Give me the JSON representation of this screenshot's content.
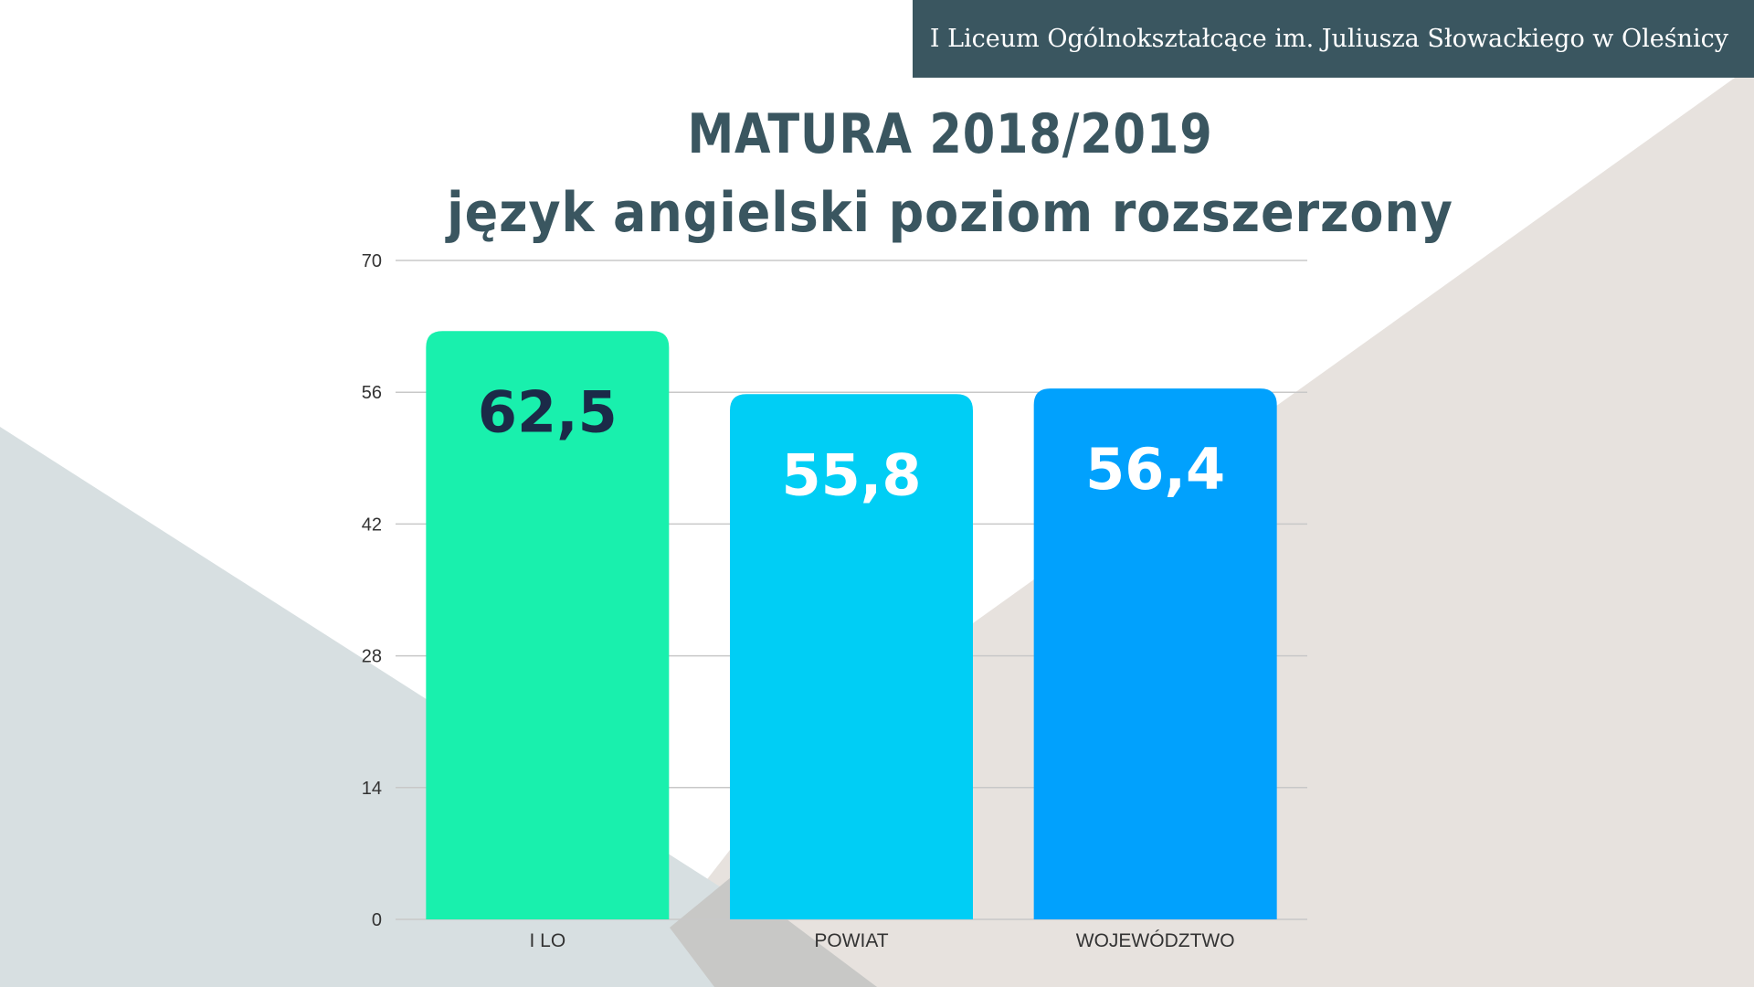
{
  "header": {
    "school_name": "I Liceum Ogólnokształcące im. Juliusza Słowackiego w Oleśnicy"
  },
  "title": {
    "line1": "MATURA 2018/2019",
    "line2": "język angielski poziom rozszerzony"
  },
  "colors": {
    "header_bg": "#3a5660",
    "title": "#3a5660",
    "bar_ilo": "#19f0ad",
    "bar_powiat": "#00cef5",
    "bar_woj": "#01a1fd"
  },
  "chart_data": {
    "type": "bar",
    "title": "MATURA 2018/2019 język angielski poziom rozszerzony",
    "categories": [
      "I LO",
      "POWIAT",
      "WOJEWÓDZTWO"
    ],
    "values": [
      62.5,
      55.8,
      56.4
    ],
    "value_labels": [
      "62,5",
      "55,8",
      "56,4"
    ],
    "bar_colors": [
      "#19f0ad",
      "#00cef5",
      "#01a1fd"
    ],
    "label_colors": [
      "#1b2a48",
      "#ffffff",
      "#ffffff"
    ],
    "yticks": [
      0,
      14,
      28,
      42,
      56,
      70
    ],
    "ylim": [
      0,
      70
    ],
    "xlabel": "",
    "ylabel": "",
    "grid": true
  }
}
